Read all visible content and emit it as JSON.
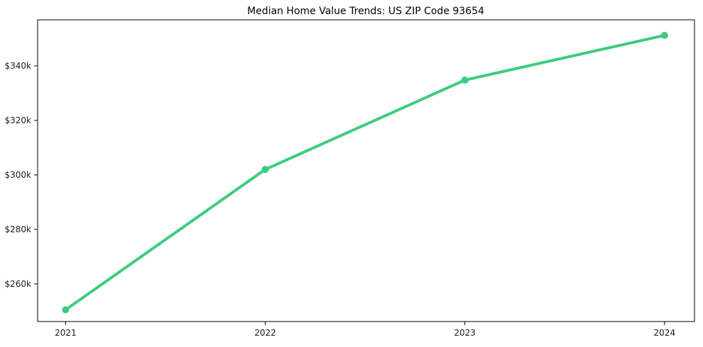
{
  "chart_data": {
    "type": "line",
    "title": "Median Home Value Trends: US ZIP Code 93654",
    "x": [
      2021,
      2022,
      2023,
      2024
    ],
    "x_tick_labels": [
      "2021",
      "2022",
      "2023",
      "2024"
    ],
    "series": [
      {
        "name": "Median Home Value",
        "values": [
          250500,
          302000,
          334800,
          351200
        ]
      }
    ],
    "y_ticks": [
      {
        "value": 260000,
        "label": "$260k"
      },
      {
        "value": 280000,
        "label": "$280k"
      },
      {
        "value": 300000,
        "label": "$300k"
      },
      {
        "value": 320000,
        "label": "$320k"
      },
      {
        "value": 340000,
        "label": "$340k"
      }
    ],
    "ylim": [
      246200,
      356900
    ],
    "xlim": [
      2020.86,
      2024.15
    ],
    "grid": false,
    "legend": "none",
    "marker": "circle",
    "line_color": "#3dcc7e",
    "spine_color": "#000000",
    "tick_color": "#000000",
    "text_color": "#1a1a1a",
    "background_color": "#ffffff"
  }
}
